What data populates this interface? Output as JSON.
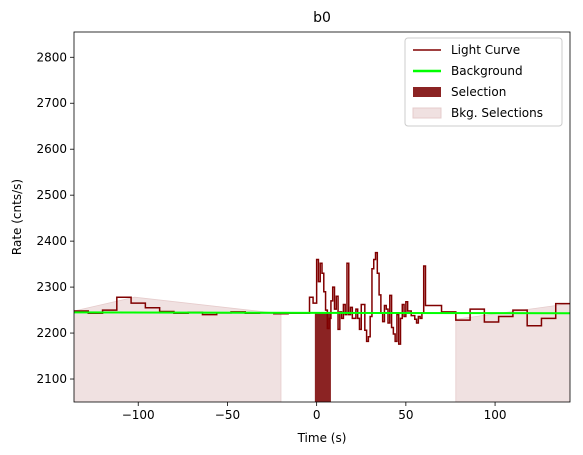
{
  "chart_data": {
    "type": "line",
    "title": "b0",
    "xlabel": "Time (s)",
    "ylabel": "Rate (cnts/s)",
    "xlim": [
      -136,
      142
    ],
    "ylim": [
      2050,
      2855
    ],
    "xticks": [
      -100,
      -50,
      0,
      50,
      100
    ],
    "yticks": [
      2100,
      2200,
      2300,
      2400,
      2500,
      2600,
      2700,
      2800
    ],
    "grid": false,
    "legend_position": "top-right",
    "colors": {
      "light_curve": "#800000",
      "background": "#00ff00",
      "selection": "#8b2323",
      "bkg_selection": "#f0e1e1"
    },
    "legend": [
      "Light Curve",
      "Background",
      "Selection",
      "Bkg. Selections"
    ],
    "series": [
      {
        "name": "Light Curve",
        "style": "step",
        "x": [
          -136,
          -128,
          -120,
          -112,
          -104,
          -96,
          -88,
          -80,
          -72,
          -64,
          -56,
          -48,
          -40,
          -32,
          -24,
          -16,
          -8,
          -4,
          -2,
          0,
          1,
          2,
          3,
          4,
          5,
          6,
          7,
          8,
          9,
          10,
          11,
          12,
          13,
          14,
          15,
          16,
          17,
          18,
          19,
          20,
          21,
          22,
          23,
          24,
          25,
          26,
          27,
          28,
          29,
          30,
          31,
          32,
          33,
          34,
          35,
          36,
          37,
          38,
          39,
          40,
          41,
          42,
          43,
          44,
          45,
          46,
          47,
          48,
          49,
          50,
          51,
          52,
          53,
          54,
          55,
          56,
          57,
          58,
          59,
          60,
          61,
          62,
          70,
          78,
          86,
          94,
          102,
          110,
          118,
          126,
          134
        ],
        "y": [
          2248,
          2243,
          2250,
          2278,
          2265,
          2255,
          2247,
          2243,
          2245,
          2240,
          2244,
          2246,
          2243,
          2244,
          2242,
          2243,
          2243,
          2278,
          2265,
          2360,
          2312,
          2352,
          2330,
          2290,
          2250,
          2210,
          2232,
          2270,
          2300,
          2252,
          2280,
          2208,
          2246,
          2232,
          2262,
          2240,
          2352,
          2240,
          2256,
          2232,
          2232,
          2252,
          2232,
          2208,
          2262,
          2262,
          2206,
          2182,
          2192,
          2236,
          2340,
          2360,
          2375,
          2330,
          2283,
          2243,
          2225,
          2260,
          2252,
          2222,
          2282,
          2212,
          2198,
          2182,
          2240,
          2176,
          2232,
          2262,
          2236,
          2268,
          2248,
          2248,
          2238,
          2238,
          2230,
          2222,
          2236,
          2232,
          2244,
          2346,
          2260,
          2260,
          2246,
          2228,
          2252,
          2224,
          2236,
          2250,
          2216,
          2232,
          2264
        ]
      },
      {
        "name": "Background",
        "style": "line",
        "x": [
          -136,
          142
        ],
        "y": [
          2245,
          2243
        ]
      }
    ],
    "selection": {
      "label": "Selection",
      "x_start": -1,
      "x_end": 8,
      "y_top": 2243
    },
    "bkg_selections": [
      {
        "x_start": -136,
        "x_end": -20,
        "y_top_start": 2248,
        "y_top_end": 2242,
        "y_peak_x": -102,
        "y_peak": 2278
      },
      {
        "x_start": 78,
        "x_end": 142,
        "y_top_start": 2230,
        "y_top_end": 2264
      }
    ]
  }
}
